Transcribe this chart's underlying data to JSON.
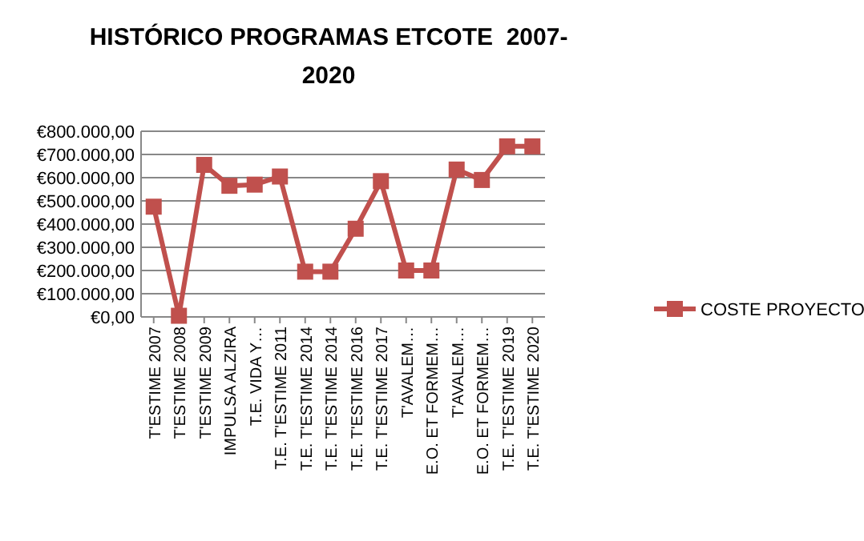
{
  "chart_data": {
    "type": "line",
    "title": "HISTÓRICO PROGRAMAS ETCOTE  2007-\n2020",
    "categories": [
      "T'ESTIME 2007",
      "T'ESTIME 2008",
      "T'ESTIME 2009",
      "IMPULSA ALZIRA",
      "T.E. VIDA Y…",
      "T.E. T'ESTIME 2011",
      "T.E. T'ESTIME 2014",
      "T.E. T'ESTIME 2014",
      "T.E. T'ESTIME 2016",
      "T.E. T'ESTIME 2017",
      "T'AVALEM…",
      "E.O. ET FORMEM…",
      "T'AVALEM…",
      "E.O. ET FORMEM…",
      "T.E. T'ESTIME 2019",
      "T.E. T'ESTIME 2020"
    ],
    "series": [
      {
        "name": "COSTE PROYECTO",
        "color": "#c0504d",
        "values": [
          475000,
          5000,
          655000,
          565000,
          570000,
          605000,
          195000,
          195000,
          380000,
          585000,
          200000,
          200000,
          635000,
          590000,
          735000,
          735000
        ]
      }
    ],
    "ylim": [
      0,
      800000
    ],
    "yticks": [
      {
        "value": 0,
        "label": "€0,00"
      },
      {
        "value": 100000,
        "label": "€100.000,00"
      },
      {
        "value": 200000,
        "label": "€200.000,00"
      },
      {
        "value": 300000,
        "label": "€300.000,00"
      },
      {
        "value": 400000,
        "label": "€400.000,00"
      },
      {
        "value": 500000,
        "label": "€500.000,00"
      },
      {
        "value": 600000,
        "label": "€600.000,00"
      },
      {
        "value": 700000,
        "label": "€700.000,00"
      },
      {
        "value": 800000,
        "label": "€800.000,00"
      }
    ],
    "grid": "y",
    "legend": "right",
    "marker": "square",
    "line_style": "solid"
  }
}
